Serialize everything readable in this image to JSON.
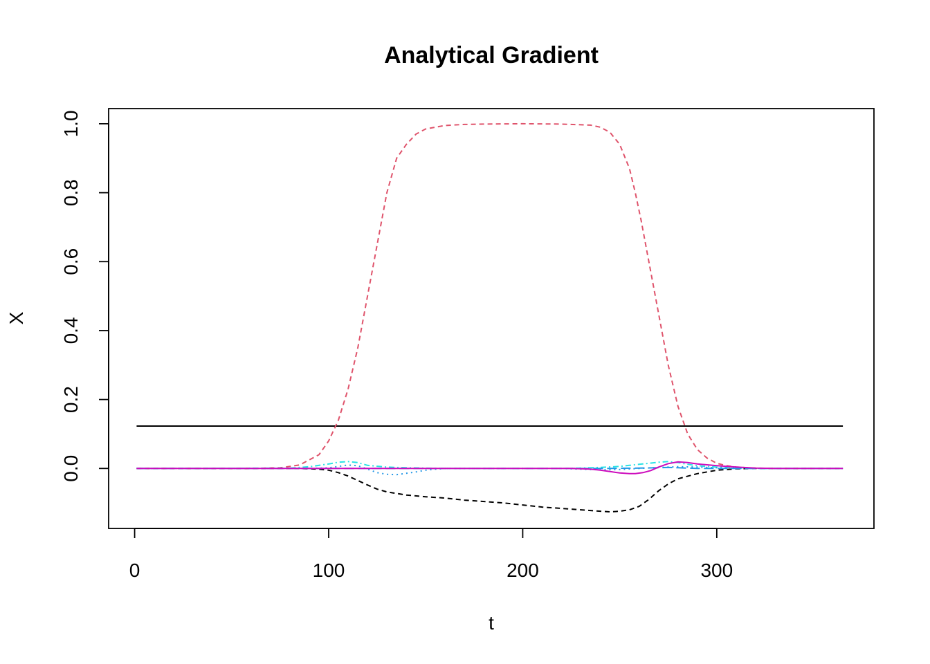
{
  "chart_data": {
    "type": "line",
    "title": "Analytical Gradient",
    "xlabel": "t",
    "ylabel": "X",
    "xlim": [
      -13.4,
      381
    ],
    "ylim": [
      -0.174,
      1.044
    ],
    "x_ticks": [
      0,
      100,
      200,
      300
    ],
    "x_tick_labels": [
      "0",
      "100",
      "200",
      "300"
    ],
    "y_ticks": [
      0.0,
      0.2,
      0.4,
      0.6,
      0.8,
      1.0
    ],
    "y_tick_labels": [
      "0.0",
      "0.2",
      "0.4",
      "0.6",
      "0.8",
      "1.0"
    ],
    "grid": false,
    "series": [
      {
        "color": "#000000",
        "dash": "solid",
        "x": [
          1,
          365
        ],
        "y": [
          0.123,
          0.123
        ]
      },
      {
        "color": "#DF536B",
        "dash": "dashed",
        "x": [
          1,
          60,
          75,
          85,
          95,
          100,
          105,
          110,
          115,
          120,
          125,
          130,
          135,
          140,
          145,
          150,
          160,
          170,
          180,
          200,
          220,
          235,
          240,
          245,
          250,
          255,
          258,
          261,
          265,
          270,
          275,
          280,
          285,
          290,
          295,
          300,
          305,
          310,
          320,
          335,
          365
        ],
        "y": [
          0.0,
          0.0,
          0.002,
          0.01,
          0.04,
          0.08,
          0.14,
          0.23,
          0.35,
          0.5,
          0.65,
          0.8,
          0.9,
          0.94,
          0.97,
          0.985,
          0.995,
          0.998,
          0.999,
          1.0,
          0.999,
          0.996,
          0.99,
          0.975,
          0.94,
          0.87,
          0.8,
          0.72,
          0.6,
          0.45,
          0.3,
          0.18,
          0.1,
          0.055,
          0.03,
          0.015,
          0.008,
          0.004,
          0.001,
          0.0,
          0.0
        ]
      },
      {
        "color": "#000000",
        "dash": "dashed",
        "x": [
          1,
          70,
          85,
          95,
          100,
          105,
          110,
          115,
          120,
          125,
          130,
          140,
          150,
          160,
          170,
          190,
          210,
          230,
          240,
          245,
          250,
          255,
          260,
          265,
          270,
          275,
          280,
          290,
          300,
          310,
          320,
          335,
          365
        ],
        "y": [
          0.0,
          0.0,
          0.0,
          -0.002,
          -0.005,
          -0.012,
          -0.022,
          -0.035,
          -0.048,
          -0.06,
          -0.068,
          -0.077,
          -0.082,
          -0.086,
          -0.092,
          -0.1,
          -0.112,
          -0.12,
          -0.124,
          -0.126,
          -0.124,
          -0.12,
          -0.11,
          -0.09,
          -0.065,
          -0.045,
          -0.03,
          -0.015,
          -0.005,
          -0.001,
          0.0,
          0.0,
          0.0
        ]
      },
      {
        "color": "#28E2E5",
        "dash": "dotdash",
        "x": [
          1,
          80,
          90,
          100,
          105,
          110,
          115,
          120,
          130,
          140,
          150,
          160,
          180,
          220,
          230,
          240,
          250,
          255,
          260,
          265,
          270,
          275,
          280,
          285,
          290,
          300,
          310,
          320,
          365
        ],
        "y": [
          0.0,
          0.001,
          0.005,
          0.013,
          0.018,
          0.02,
          0.017,
          0.009,
          0.004,
          0.002,
          0.001,
          0.0,
          0.0,
          0.0,
          0.001,
          0.003,
          0.006,
          0.009,
          0.012,
          0.015,
          0.018,
          0.02,
          0.017,
          0.012,
          0.008,
          0.004,
          0.002,
          0.0,
          0.0
        ]
      },
      {
        "color": "#2297E6",
        "dash": "dotted",
        "x": [
          1,
          90,
          100,
          105,
          110,
          115,
          120,
          125,
          130,
          135,
          140,
          145,
          150,
          155,
          160,
          180,
          220,
          230,
          240,
          250,
          260,
          270,
          280,
          290,
          300,
          310,
          320,
          365
        ],
        "y": [
          0.0,
          0.0,
          0.002,
          0.006,
          0.01,
          0.008,
          -0.002,
          -0.012,
          -0.017,
          -0.018,
          -0.014,
          -0.01,
          -0.005,
          -0.002,
          0.0,
          0.0,
          0.0,
          -0.002,
          -0.004,
          -0.003,
          0.0,
          0.003,
          0.005,
          0.004,
          0.002,
          0.0,
          0.0,
          0.0
        ]
      },
      {
        "color": "#2297E6",
        "dash": "longdash",
        "x": [
          1,
          220,
          240,
          260,
          270,
          275,
          280,
          285,
          290,
          300,
          310,
          320,
          365
        ],
        "y": [
          0.0,
          0.0,
          0.0,
          0.001,
          0.002,
          0.003,
          0.002,
          0.001,
          0.0,
          0.0,
          0.0,
          0.0,
          0.0
        ]
      },
      {
        "color": "#CD0BBC",
        "dash": "solid",
        "x": [
          1,
          150,
          200,
          225,
          235,
          240,
          245,
          250,
          255,
          258,
          262,
          266,
          270,
          275,
          280,
          285,
          290,
          300,
          310,
          320,
          330,
          365
        ],
        "y": [
          0.0,
          0.0,
          0.0,
          0.0,
          -0.002,
          -0.005,
          -0.009,
          -0.013,
          -0.015,
          -0.015,
          -0.012,
          -0.006,
          0.004,
          0.014,
          0.019,
          0.017,
          0.013,
          0.008,
          0.004,
          0.001,
          0.0,
          0.0
        ]
      }
    ]
  }
}
